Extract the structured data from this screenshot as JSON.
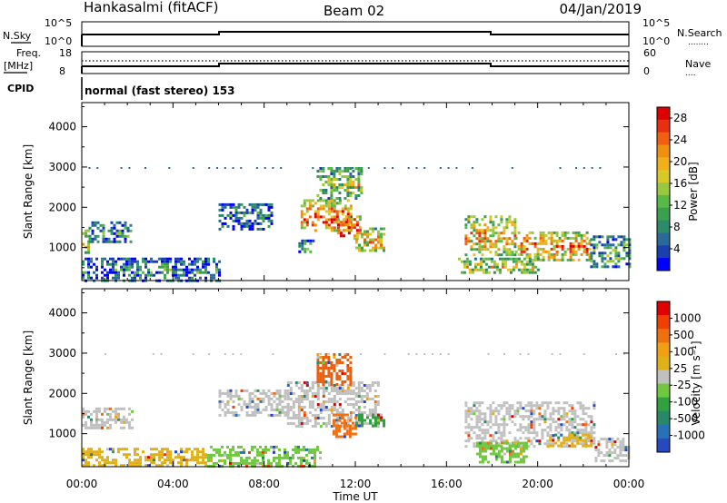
{
  "header": {
    "station": "Hankasalmi (fitACF)",
    "beam": "Beam 02",
    "date": "04/Jan/2019"
  },
  "side_labels": {
    "nsky": "N.Sky",
    "nsearch": "N.Search",
    "freq_line1": "Freq.",
    "freq_line2": "[MHz]",
    "nave": "Nave",
    "cpid": "CPID"
  },
  "top_ticks": {
    "nsky_hi": "10^5",
    "nsky_lo": "10^0",
    "nsearch_hi": "10^5",
    "nsearch_lo": "10^0",
    "freq_hi": "18",
    "freq_lo": "8",
    "nave_hi": "60",
    "nave_lo": "0"
  },
  "cpid_text": "normal (fast stereo) 153",
  "chart_data": [
    {
      "type": "heatmap",
      "name": "power",
      "xlabel": "",
      "ylabel": "Slant Range [km]",
      "xlim": [
        0,
        24
      ],
      "ylim": [
        180,
        4600
      ],
      "y_ticks": [
        1000,
        2000,
        3000,
        4000
      ],
      "y_tick_labels": [
        "1000",
        "2000",
        "3000",
        "4000"
      ],
      "colorbar": {
        "label": "Power [dB]",
        "tick_labels": [
          "28",
          "24",
          "20",
          "16",
          "12",
          "8",
          "4"
        ],
        "tick_values": [
          28,
          24,
          20,
          16,
          12,
          8,
          4
        ],
        "range": [
          0,
          30
        ],
        "colors": [
          "#0000ff",
          "#1a40b0",
          "#2a6a9a",
          "#2e8a6a",
          "#3aa050",
          "#58b848",
          "#98c840",
          "#d8c828",
          "#f0b018",
          "#f09010",
          "#f06010",
          "#e83010",
          "#e00000"
        ]
      },
      "blobs": [
        {
          "t0": 0.0,
          "t1": 0.3,
          "r0": 900,
          "r1": 1450,
          "level": 0.55
        },
        {
          "t0": 0.3,
          "t1": 2.2,
          "r0": 1150,
          "r1": 1650,
          "level": 0.3
        },
        {
          "t0": 0.0,
          "t1": 6.0,
          "r0": 180,
          "r1": 750,
          "level": 0.25
        },
        {
          "t0": 6.0,
          "t1": 8.3,
          "r0": 1450,
          "r1": 2100,
          "level": 0.25
        },
        {
          "t0": 9.5,
          "t1": 10.2,
          "r0": 900,
          "r1": 1200,
          "level": 0.3
        },
        {
          "t0": 9.6,
          "t1": 11.8,
          "r0": 1400,
          "r1": 2200,
          "level": 0.75
        },
        {
          "t0": 11.2,
          "t1": 12.2,
          "r0": 1200,
          "r1": 1800,
          "level": 0.85
        },
        {
          "t0": 10.3,
          "t1": 12.3,
          "r0": 2200,
          "r1": 3000,
          "level": 0.45
        },
        {
          "t0": 12.0,
          "t1": 13.3,
          "r0": 900,
          "r1": 1500,
          "level": 0.6
        },
        {
          "t0": 16.8,
          "t1": 19.0,
          "r0": 800,
          "r1": 1800,
          "level": 0.6
        },
        {
          "t0": 19.0,
          "t1": 22.3,
          "r0": 700,
          "r1": 1400,
          "level": 0.7
        },
        {
          "t0": 22.3,
          "t1": 24.0,
          "r0": 500,
          "r1": 1300,
          "level": 0.35
        },
        {
          "t0": 16.5,
          "t1": 20.0,
          "r0": 350,
          "r1": 750,
          "level": 0.5
        }
      ]
    },
    {
      "type": "heatmap",
      "name": "velocity",
      "xlabel": "Time UT",
      "ylabel": "Slant Range [km]",
      "xlim": [
        0,
        24
      ],
      "ylim": [
        180,
        4600
      ],
      "x_ticks": [
        0,
        4,
        8,
        12,
        16,
        20,
        24
      ],
      "x_tick_labels": [
        "00:00",
        "04:00",
        "08:00",
        "12:00",
        "16:00",
        "20:00",
        "00:00"
      ],
      "y_ticks": [
        1000,
        2000,
        3000,
        4000
      ],
      "y_tick_labels": [
        "1000",
        "2000",
        "3000",
        "4000"
      ],
      "colorbar": {
        "label": "Velocity [m s⁻¹]",
        "tick_labels": [
          "1000",
          "500",
          "100",
          "25",
          "-25",
          "-100",
          "-500",
          "-1000"
        ],
        "tick_values": [
          1000,
          500,
          100,
          25,
          -25,
          -100,
          -500,
          -1000
        ],
        "colors": [
          "#2848c0",
          "#2870b8",
          "#288868",
          "#30a040",
          "#70c840",
          "#c0c0c0",
          "#e0b018",
          "#f0a010",
          "#f07010",
          "#f04000",
          "#e00000"
        ]
      },
      "blobs": [
        {
          "t0": 0.0,
          "t1": 5.5,
          "r0": 180,
          "r1": 650,
          "color": "#e0b018"
        },
        {
          "t0": 0.0,
          "t1": 2.2,
          "r0": 1150,
          "r1": 1650,
          "color": "#c0c0c0"
        },
        {
          "t0": 5.5,
          "t1": 10.5,
          "r0": 180,
          "r1": 700,
          "color": "#70c840"
        },
        {
          "t0": 6.0,
          "t1": 9.0,
          "r0": 1450,
          "r1": 2100,
          "color": "#c0c0c0"
        },
        {
          "t0": 9.0,
          "t1": 13.0,
          "r0": 1200,
          "r1": 2300,
          "color": "#c0c0c0"
        },
        {
          "t0": 10.3,
          "t1": 11.8,
          "r0": 2200,
          "r1": 3000,
          "color": "#e86010"
        },
        {
          "t0": 11.0,
          "t1": 12.0,
          "r0": 900,
          "r1": 1500,
          "color": "#f07010"
        },
        {
          "t0": 12.0,
          "t1": 13.2,
          "r0": 1200,
          "r1": 1500,
          "color": "#30a040"
        },
        {
          "t0": 16.8,
          "t1": 22.5,
          "r0": 700,
          "r1": 1800,
          "color": "#c0c0c0"
        },
        {
          "t0": 17.3,
          "t1": 19.5,
          "r0": 300,
          "r1": 800,
          "color": "#70c840"
        },
        {
          "t0": 22.5,
          "t1": 24.0,
          "r0": 350,
          "r1": 900,
          "color": "#c0c0c0"
        },
        {
          "t0": 20.5,
          "t1": 22.3,
          "r0": 700,
          "r1": 1000,
          "color": "#e0b018"
        }
      ]
    }
  ]
}
